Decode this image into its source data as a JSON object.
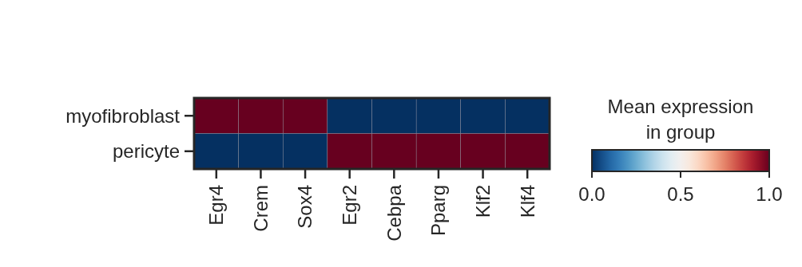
{
  "chart_data": {
    "type": "heatmap",
    "categories": [
      "Egr4",
      "Crem",
      "Sox4",
      "Egr2",
      "Cebpa",
      "Pparg",
      "Klf2",
      "Klf4"
    ],
    "y_categories": [
      "myofibroblast",
      "pericyte"
    ],
    "cells": [
      [
        1,
        1,
        1,
        0,
        0,
        0,
        0,
        0
      ],
      [
        0,
        0,
        0,
        1,
        1,
        1,
        1,
        1
      ]
    ],
    "clim": [
      0,
      1
    ],
    "cticks": [
      {
        "value": 0,
        "label": "0.0"
      },
      {
        "value": 0.5,
        "label": "0.5"
      },
      {
        "value": 1,
        "label": "1.0"
      }
    ],
    "clabel": "Mean expression\nin group"
  }
}
